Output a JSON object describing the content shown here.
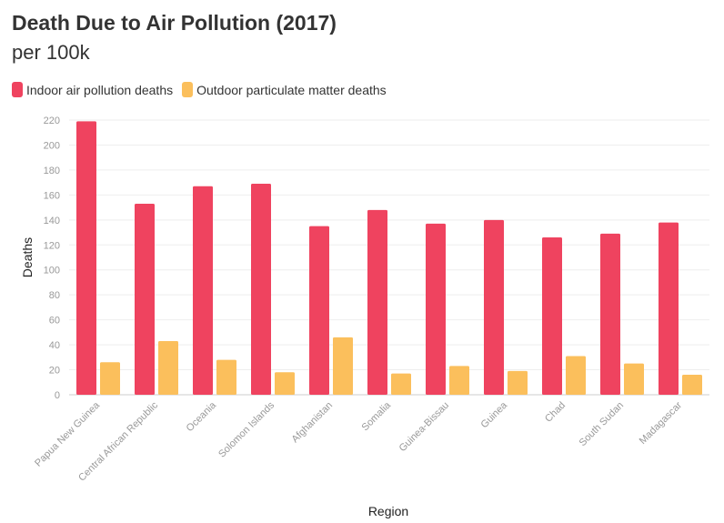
{
  "colors": {
    "indoor": "#ef435f",
    "outdoor": "#fbbf5c",
    "grid": "#eeeeee",
    "tick": "#999999"
  },
  "chart_data": {
    "type": "bar",
    "title": "Death Due to Air Pollution (2017)",
    "subtitle": "per 100k",
    "xlabel": "Region",
    "ylabel": "Deaths",
    "ylim": [
      0,
      220
    ],
    "yticks": [
      0,
      20,
      40,
      60,
      80,
      100,
      120,
      140,
      160,
      180,
      200,
      220
    ],
    "grid": true,
    "legend_position": "top-left",
    "categories": [
      "Papua New Guinea",
      "Central African Republic",
      "Oceania",
      "Solomon Islands",
      "Afghanistan",
      "Somalia",
      "Guinea-Bissau",
      "Guinea",
      "Chad",
      "South Sudan",
      "Madagascar"
    ],
    "series": [
      {
        "name": "Indoor air pollution deaths",
        "color_key": "indoor",
        "values": [
          219,
          153,
          167,
          169,
          135,
          148,
          137,
          140,
          126,
          129,
          138
        ]
      },
      {
        "name": "Outdoor particulate matter deaths",
        "color_key": "outdoor",
        "values": [
          26,
          43,
          28,
          18,
          46,
          17,
          23,
          19,
          31,
          25,
          16
        ]
      }
    ]
  }
}
